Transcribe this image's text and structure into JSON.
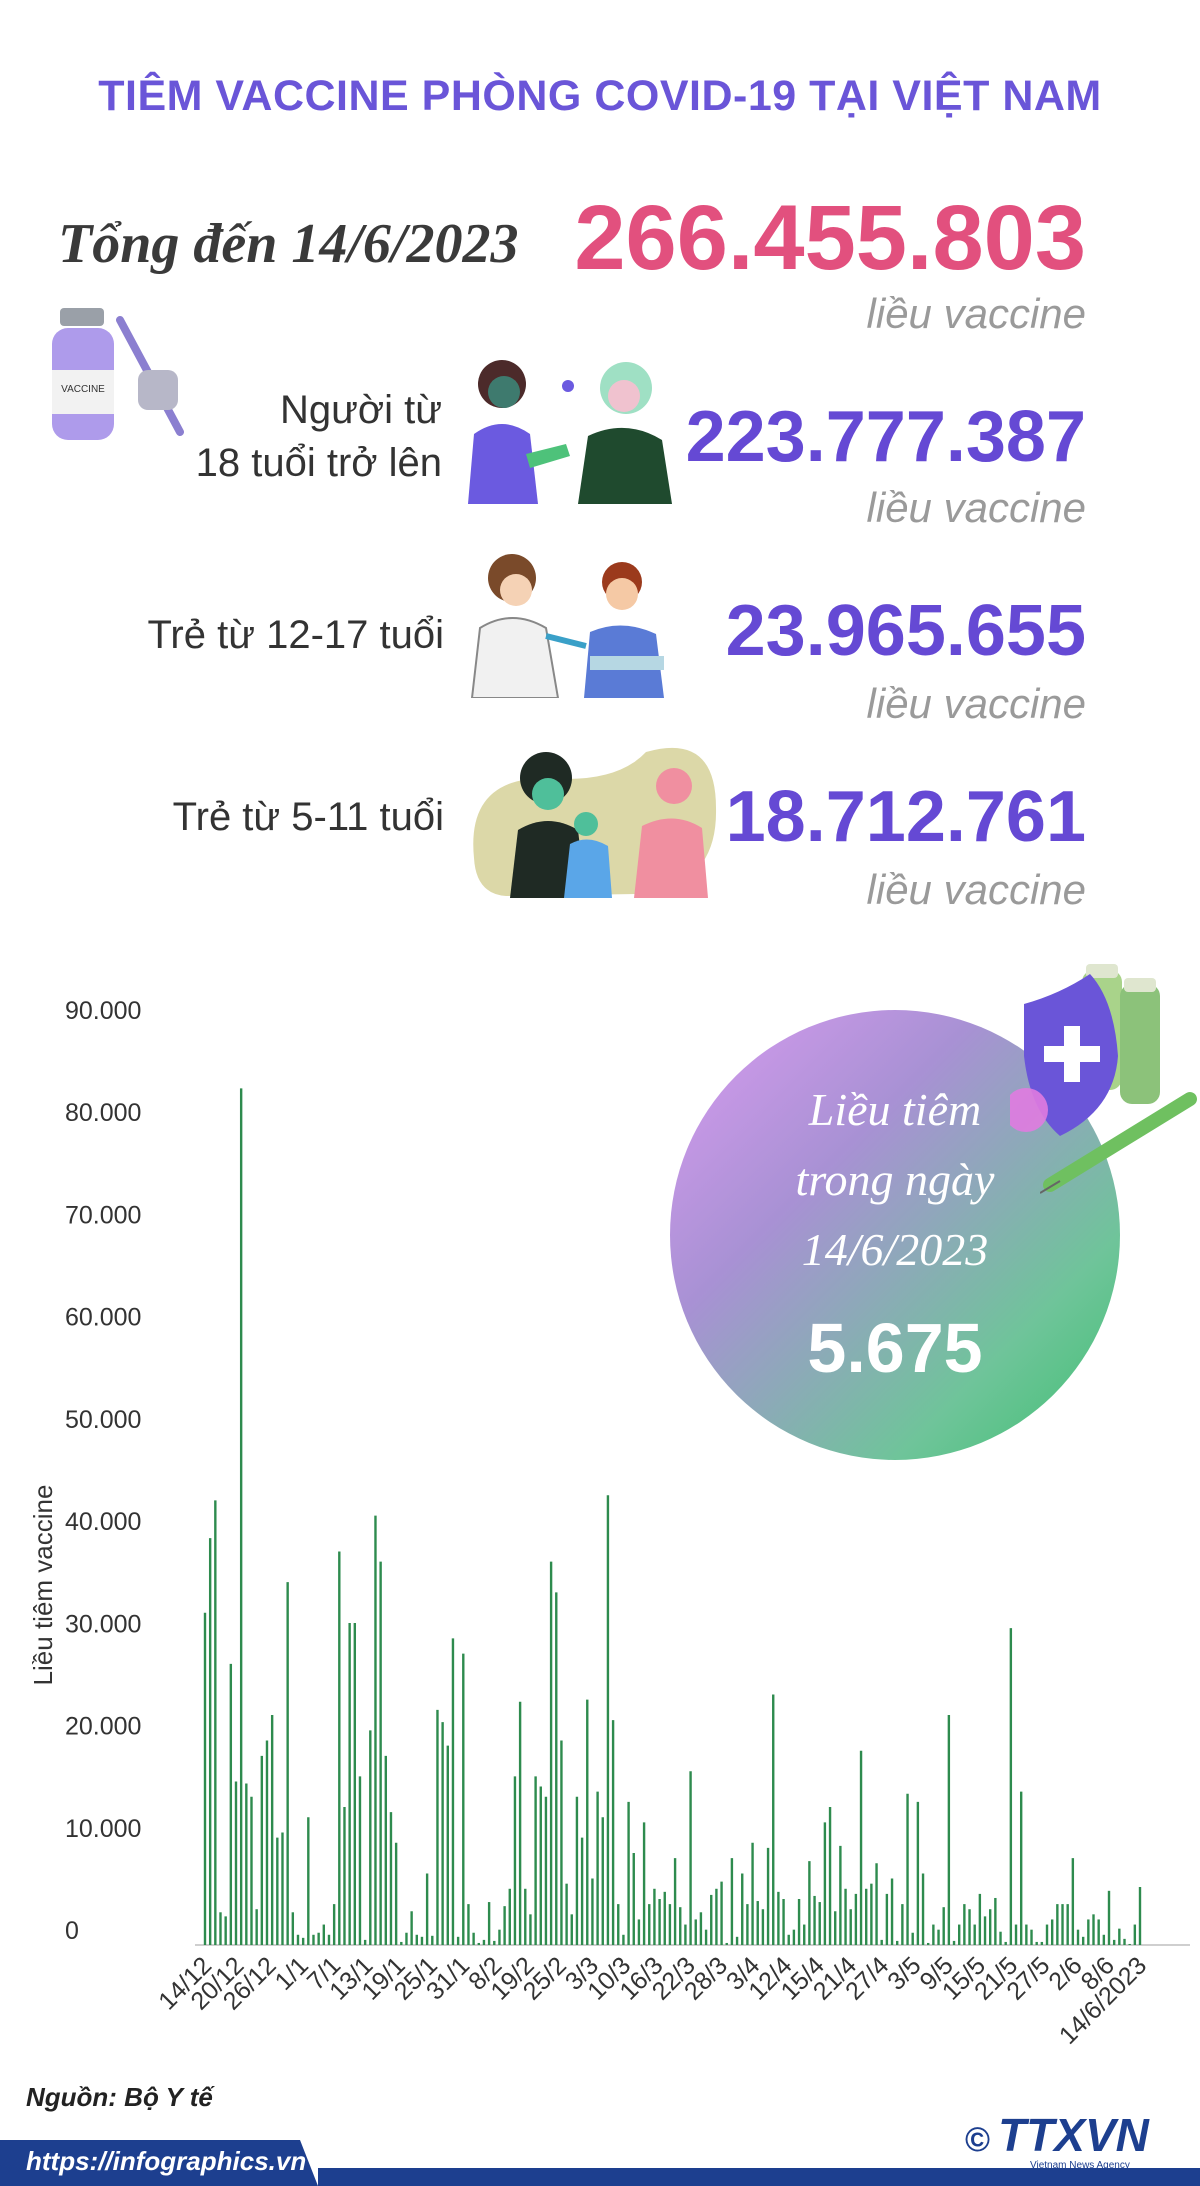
{
  "title": "TIÊM VACCINE PHÒNG COVID-19 TẠI VIỆT NAM",
  "total": {
    "label": "Tổng đến 14/6/2023",
    "value": "266.455.803",
    "unit": "liều vaccine"
  },
  "groups": [
    {
      "label_line1": "Người từ",
      "label_line2": "18 tuổi trở lên",
      "value": "223.777.387",
      "unit": "liều vaccine"
    },
    {
      "label_line1": "Trẻ từ 12-17 tuổi",
      "value": "23.965.655",
      "unit": "liều vaccine"
    },
    {
      "label_line1": "Trẻ từ 5-11 tuổi",
      "value": "18.712.761",
      "unit": "liều vaccine"
    }
  ],
  "daily": {
    "line1": "Liều tiêm",
    "line2": "trong ngày",
    "line3": "14/6/2023",
    "value": "5.675"
  },
  "colors": {
    "title": "#6a55d8",
    "total": "#e2507e",
    "group": "#6549d4",
    "bar": "#2e8b4e",
    "footer": "#1d3f8f"
  },
  "icons": [
    "vaccine-vial-icon",
    "adult-vaccination-icon",
    "teen-vaccination-icon",
    "child-vaccination-icon",
    "shield-cross-icon",
    "syringe-icon"
  ],
  "chart_data": {
    "type": "bar",
    "ylabel": "Liều tiêm vaccine",
    "ylim": [
      0,
      90000
    ],
    "y_ticks": [
      "90.000",
      "80.000",
      "70.000",
      "60.000",
      "50.000",
      "40.000",
      "30.000",
      "20.000",
      "10.000",
      "0"
    ],
    "x_tick_labels": [
      "14/12",
      "20/12",
      "26/12",
      "1/1",
      "7/1",
      "13/1",
      "19/1",
      "25/1",
      "31/1",
      "8/2",
      "19/2",
      "25/2",
      "3/3",
      "10/3",
      "16/3",
      "22/3",
      "28/3",
      "3/4",
      "12/4",
      "15/4",
      "21/4",
      "27/4",
      "3/5",
      "9/5",
      "15/5",
      "21/5",
      "27/5",
      "2/6",
      "8/6",
      "14/6/2023"
    ],
    "values": [
      32500,
      39800,
      43500,
      3200,
      2800,
      27500,
      16000,
      83800,
      15800,
      14500,
      3500,
      18500,
      20000,
      22500,
      10500,
      11000,
      35500,
      3200,
      1000,
      700,
      12500,
      1000,
      1200,
      2000,
      1000,
      4000,
      38500,
      13500,
      31500,
      31500,
      16500,
      500,
      21000,
      42000,
      37500,
      18500,
      13000,
      10000,
      300,
      1200,
      3300,
      1000,
      800,
      7000,
      900,
      23000,
      21800,
      19500,
      30000,
      800,
      28500,
      4000,
      1200,
      200,
      500,
      4200,
      400,
      1500,
      3800,
      5500,
      16500,
      23800,
      5500,
      3000,
      16500,
      15500,
      14500,
      37500,
      34500,
      20000,
      6000,
      3000,
      14500,
      10500,
      24000,
      6500,
      15000,
      12500,
      44000,
      22000,
      4000,
      1000,
      14000,
      9000,
      2500,
      12000,
      4000,
      5500,
      4500,
      5200,
      4000,
      8500,
      3700,
      2000,
      17000,
      2500,
      3200,
      1500,
      4900,
      5500,
      6200,
      200,
      8500,
      800,
      7000,
      4000,
      10000,
      4300,
      3500,
      9500,
      24500,
      5200,
      4500,
      1000,
      1500,
      4500,
      2000,
      8200,
      4800,
      4200,
      12000,
      13500,
      3300,
      9700,
      5500,
      3500,
      5000,
      19000,
      5500,
      6000,
      8000,
      500,
      5000,
      6500,
      400,
      4000,
      14800,
      1200,
      14000,
      7000,
      200,
      2000,
      1500,
      3700,
      22500,
      400,
      2000,
      4000,
      3500,
      2000,
      5000,
      2800,
      3500,
      4600,
      1300,
      300,
      31000,
      2000,
      15000,
      2000,
      1500,
      300,
      300,
      2000,
      2500,
      4000,
      4000,
      4000,
      8500,
      1500,
      800,
      2500,
      3000,
      2500,
      1000,
      5300,
      500,
      1600,
      600,
      100,
      2000,
      5675
    ]
  },
  "footer": {
    "source": "Nguồn: Bộ Y tế",
    "site": "https://infographics.vn",
    "logo": "TTXVN",
    "logo_sub": "Vietnam News Agency",
    "copyright": "©"
  }
}
